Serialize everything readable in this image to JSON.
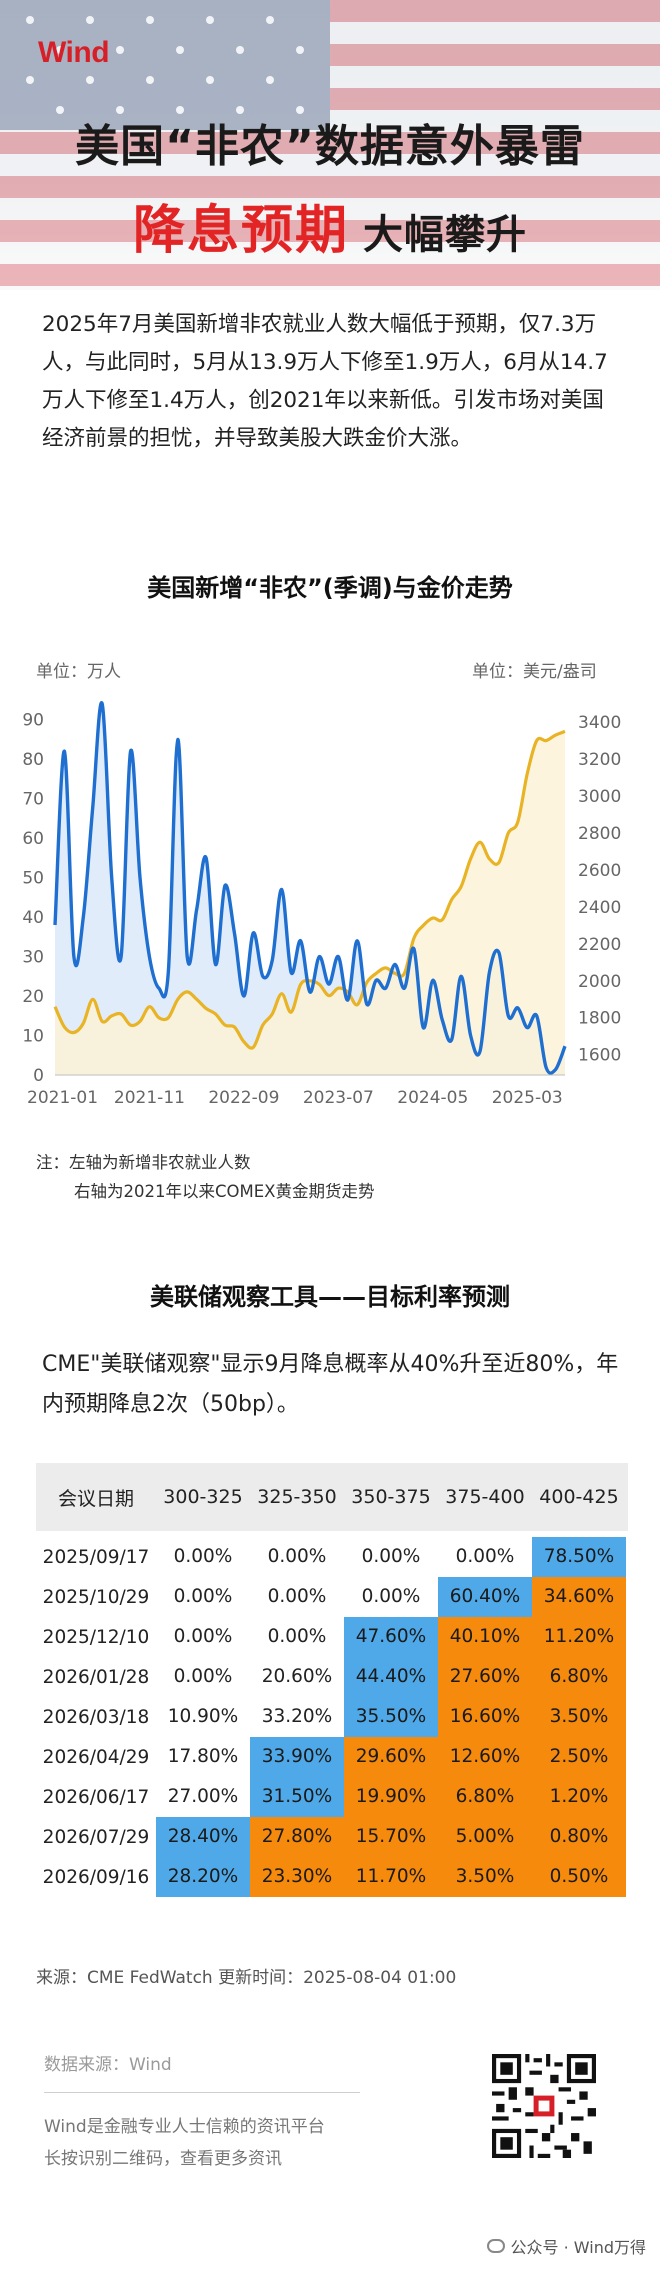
{
  "header": {
    "logo": "Wind",
    "title_line1": "美国“非农”数据意外暴雷",
    "title_line2_red": "降息预期",
    "title_line2_dark": "大幅攀升"
  },
  "intro": "2025年7月美国新增非农就业人数大幅低于预期，仅7.3万人，与此同时，5月从13.9万人下修至1.9万人，6月从14.7万人下修至1.4万人，创2021年以来新低。引发市场对美国经济前景的担忧，并导致美股大跌金价大涨。",
  "chart_section": {
    "unit_left": "单位：万人",
    "unit_right": "单位：美元/盎司",
    "note_label": "注：",
    "note1": "左轴为新增非农就业人数",
    "note2": "右轴为2021年以来COMEX黄金期货走势"
  },
  "chart_data": {
    "type": "line",
    "title": "美国新增“非农”(季调)与金价走势",
    "x_tick_labels": [
      "2021-01",
      "2021-11",
      "2022-09",
      "2023-07",
      "2024-05",
      "2025-03"
    ],
    "x_range": [
      "2021-01",
      "2025-07"
    ],
    "y_left": {
      "label": "单位：万人",
      "ticks": [
        0,
        10,
        20,
        30,
        40,
        50,
        60,
        70,
        80,
        90
      ],
      "range": [
        0,
        95
      ]
    },
    "y_right": {
      "label": "单位：美元/盎司",
      "ticks": [
        1600,
        1800,
        2000,
        2200,
        2400,
        2600,
        2800,
        3000,
        3200,
        3400
      ],
      "range": [
        1490,
        3520
      ]
    },
    "series": [
      {
        "axis": "left",
        "color": "#1f6fd1",
        "fill": "#dce9fa",
        "x": [
          "2021-01",
          "2021-02",
          "2021-03",
          "2021-04",
          "2021-05",
          "2021-06",
          "2021-07",
          "2021-08",
          "2021-09",
          "2021-10",
          "2021-11",
          "2021-12",
          "2022-01",
          "2022-02",
          "2022-03",
          "2022-04",
          "2022-05",
          "2022-06",
          "2022-07",
          "2022-08",
          "2022-09",
          "2022-10",
          "2022-11",
          "2022-12",
          "2023-01",
          "2023-02",
          "2023-03",
          "2023-04",
          "2023-05",
          "2023-06",
          "2023-07",
          "2023-08",
          "2023-09",
          "2023-10",
          "2023-11",
          "2023-12",
          "2024-01",
          "2024-02",
          "2024-03",
          "2024-04",
          "2024-05",
          "2024-06",
          "2024-07",
          "2024-08",
          "2024-09",
          "2024-10",
          "2024-11",
          "2024-12",
          "2025-01",
          "2025-02",
          "2025-03",
          "2025-04",
          "2025-05",
          "2025-06",
          "2025-07"
        ],
        "values": [
          38,
          82,
          30,
          40,
          68,
          94,
          50,
          30,
          82,
          50,
          30,
          22,
          26,
          85,
          30,
          42,
          55,
          28,
          48,
          36,
          20,
          36,
          25,
          29,
          47,
          26,
          34,
          21,
          30,
          23,
          30,
          19,
          34,
          18,
          24,
          22,
          28,
          22,
          32,
          12,
          24,
          14,
          9,
          25,
          10,
          6,
          26,
          31,
          15,
          17,
          12,
          15,
          1.9,
          1.4,
          7.3
        ]
      },
      {
        "axis": "right",
        "color": "#e8b325",
        "fill": "#fbf2d6",
        "x": [
          "2021-01",
          "2021-02",
          "2021-03",
          "2021-04",
          "2021-05",
          "2021-06",
          "2021-07",
          "2021-08",
          "2021-09",
          "2021-10",
          "2021-11",
          "2021-12",
          "2022-01",
          "2022-02",
          "2022-03",
          "2022-04",
          "2022-05",
          "2022-06",
          "2022-07",
          "2022-08",
          "2022-09",
          "2022-10",
          "2022-11",
          "2022-12",
          "2023-01",
          "2023-02",
          "2023-03",
          "2023-04",
          "2023-05",
          "2023-06",
          "2023-07",
          "2023-08",
          "2023-09",
          "2023-10",
          "2023-11",
          "2023-12",
          "2024-01",
          "2024-02",
          "2024-03",
          "2024-04",
          "2024-05",
          "2024-06",
          "2024-07",
          "2024-08",
          "2024-09",
          "2024-10",
          "2024-11",
          "2024-12",
          "2025-01",
          "2025-02",
          "2025-03",
          "2025-04",
          "2025-05",
          "2025-06",
          "2025-07"
        ],
        "values": [
          1860,
          1750,
          1720,
          1770,
          1900,
          1780,
          1810,
          1820,
          1760,
          1780,
          1860,
          1800,
          1800,
          1900,
          1940,
          1900,
          1850,
          1820,
          1760,
          1750,
          1670,
          1640,
          1760,
          1820,
          1930,
          1830,
          1980,
          2000,
          1980,
          1920,
          1960,
          1940,
          1870,
          1990,
          2040,
          2070,
          2040,
          2040,
          2230,
          2300,
          2340,
          2330,
          2440,
          2510,
          2660,
          2750,
          2660,
          2640,
          2800,
          2860,
          3120,
          3300,
          3300,
          3330,
          3350
        ]
      }
    ]
  },
  "table_section": {
    "title": "美联储观察工具——目标利率预测",
    "description": "CME\"美联储观察\"显示9月降息概率从40%升至近80%，年内预期降息2次（50bp）。",
    "headers": [
      "会议日期",
      "300-325",
      "325-350",
      "350-375",
      "375-400",
      "400-425"
    ],
    "rows": [
      [
        "2025/09/17",
        "0.00%",
        "0.00%",
        "0.00%",
        "0.00%",
        "78.50%"
      ],
      [
        "2025/10/29",
        "0.00%",
        "0.00%",
        "0.00%",
        "60.40%",
        "34.60%"
      ],
      [
        "2025/12/10",
        "0.00%",
        "0.00%",
        "47.60%",
        "40.10%",
        "11.20%"
      ],
      [
        "2026/01/28",
        "0.00%",
        "20.60%",
        "44.40%",
        "27.60%",
        "6.80%"
      ],
      [
        "2026/03/18",
        "10.90%",
        "33.20%",
        "35.50%",
        "16.60%",
        "3.50%"
      ],
      [
        "2026/04/29",
        "17.80%",
        "33.90%",
        "29.60%",
        "12.60%",
        "2.50%"
      ],
      [
        "2026/06/17",
        "27.00%",
        "31.50%",
        "19.90%",
        "6.80%",
        "1.20%"
      ],
      [
        "2026/07/29",
        "28.40%",
        "27.80%",
        "15.70%",
        "5.00%",
        "0.80%"
      ],
      [
        "2026/09/16",
        "28.20%",
        "23.30%",
        "11.70%",
        "3.50%",
        "0.50%"
      ]
    ],
    "highlight_colors": {
      "max": "#4fa9e8",
      "above": "#f58a0c"
    },
    "source": "来源：CME FedWatch 更新时间：2025-08-04 01:00"
  },
  "footer": {
    "data_source": "数据来源：Wind",
    "line1": "Wind是金融专业人士信赖的资讯平台",
    "line2": "长按识别二维码，查看更多资讯",
    "qr_icon": "qr-code-icon",
    "watermark": "公众号 · Wind万得"
  }
}
